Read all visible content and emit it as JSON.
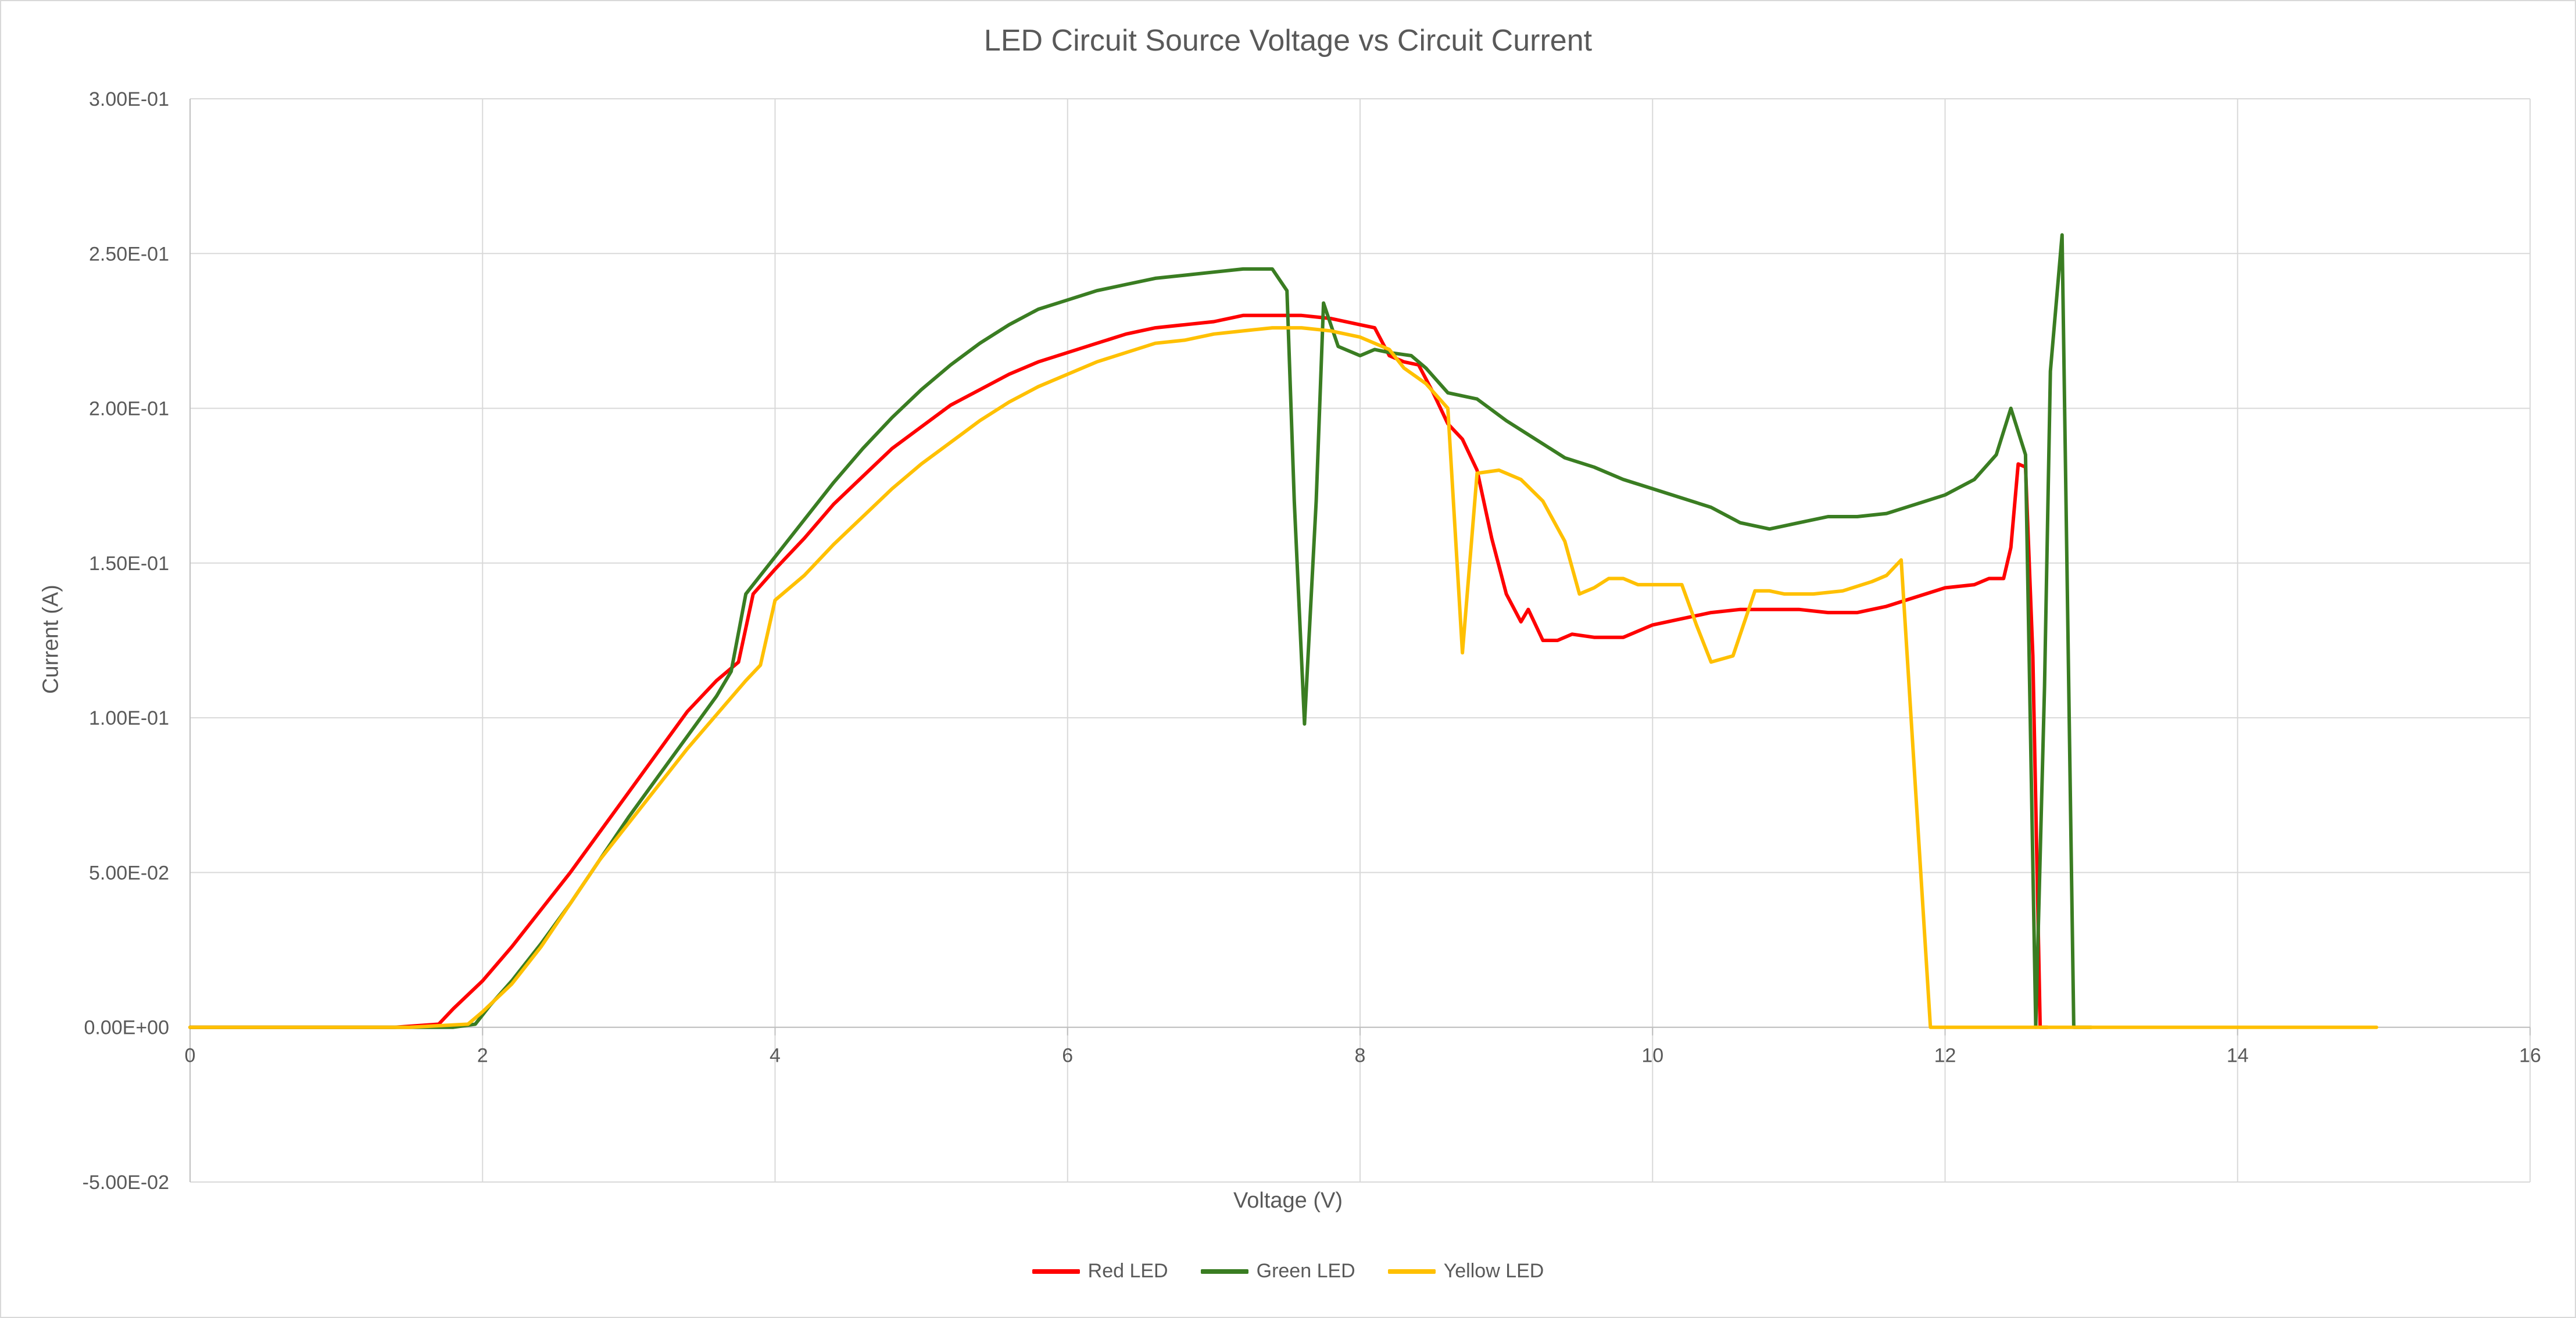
{
  "chart_data": {
    "type": "line",
    "title": "LED Circuit Source Voltage vs Circuit Current",
    "xlabel": "Voltage (V)",
    "ylabel": "Current (A)",
    "xlim": [
      0,
      16
    ],
    "ylim": [
      -0.05,
      0.3
    ],
    "x_ticks": [
      0,
      2,
      4,
      6,
      8,
      10,
      12,
      14,
      16
    ],
    "x_tick_labels": [
      "0",
      "2",
      "4",
      "6",
      "8",
      "10",
      "12",
      "14",
      "16"
    ],
    "y_ticks": [
      -0.05,
      0,
      0.05,
      0.1,
      0.15,
      0.2,
      0.25,
      0.3
    ],
    "y_tick_labels": [
      "-5.00E-02",
      "0.00E+00",
      "5.00E-02",
      "1.00E-01",
      "1.50E-01",
      "2.00E-01",
      "2.50E-01",
      "3.00E-01"
    ],
    "grid": true,
    "legend_position": "bottom",
    "series": [
      {
        "name": "Red LED",
        "color": "#ff0000",
        "points": [
          [
            0,
            0
          ],
          [
            1.4,
            0
          ],
          [
            1.7,
            0.001
          ],
          [
            1.8,
            0.006
          ],
          [
            2.0,
            0.015
          ],
          [
            2.2,
            0.026
          ],
          [
            2.4,
            0.038
          ],
          [
            2.6,
            0.05
          ],
          [
            2.8,
            0.063
          ],
          [
            3.0,
            0.076
          ],
          [
            3.2,
            0.089
          ],
          [
            3.4,
            0.102
          ],
          [
            3.6,
            0.112
          ],
          [
            3.75,
            0.118
          ],
          [
            3.85,
            0.14
          ],
          [
            4.0,
            0.148
          ],
          [
            4.2,
            0.158
          ],
          [
            4.4,
            0.169
          ],
          [
            4.6,
            0.178
          ],
          [
            4.8,
            0.187
          ],
          [
            5.0,
            0.194
          ],
          [
            5.2,
            0.201
          ],
          [
            5.4,
            0.206
          ],
          [
            5.6,
            0.211
          ],
          [
            5.8,
            0.215
          ],
          [
            6.0,
            0.218
          ],
          [
            6.2,
            0.221
          ],
          [
            6.4,
            0.224
          ],
          [
            6.6,
            0.226
          ],
          [
            6.8,
            0.227
          ],
          [
            7.0,
            0.228
          ],
          [
            7.2,
            0.23
          ],
          [
            7.4,
            0.23
          ],
          [
            7.6,
            0.23
          ],
          [
            7.8,
            0.229
          ],
          [
            8.0,
            0.227
          ],
          [
            8.1,
            0.226
          ],
          [
            8.2,
            0.217
          ],
          [
            8.3,
            0.215
          ],
          [
            8.4,
            0.214
          ],
          [
            8.5,
            0.205
          ],
          [
            8.6,
            0.195
          ],
          [
            8.7,
            0.19
          ],
          [
            8.8,
            0.18
          ],
          [
            8.9,
            0.158
          ],
          [
            9.0,
            0.14
          ],
          [
            9.1,
            0.131
          ],
          [
            9.15,
            0.135
          ],
          [
            9.25,
            0.125
          ],
          [
            9.35,
            0.125
          ],
          [
            9.45,
            0.127
          ],
          [
            9.6,
            0.126
          ],
          [
            9.8,
            0.126
          ],
          [
            10.0,
            0.13
          ],
          [
            10.2,
            0.132
          ],
          [
            10.4,
            0.134
          ],
          [
            10.6,
            0.135
          ],
          [
            10.8,
            0.135
          ],
          [
            11.0,
            0.135
          ],
          [
            11.2,
            0.134
          ],
          [
            11.4,
            0.134
          ],
          [
            11.6,
            0.136
          ],
          [
            11.8,
            0.139
          ],
          [
            12.0,
            0.142
          ],
          [
            12.2,
            0.143
          ],
          [
            12.3,
            0.145
          ],
          [
            12.4,
            0.145
          ],
          [
            12.45,
            0.155
          ],
          [
            12.5,
            0.182
          ],
          [
            12.55,
            0.181
          ],
          [
            12.6,
            0.12
          ],
          [
            12.65,
            0
          ],
          [
            12.7,
            0
          ]
        ]
      },
      {
        "name": "Green LED",
        "color": "#3a7d22",
        "points": [
          [
            0,
            0
          ],
          [
            1.4,
            0
          ],
          [
            1.8,
            0
          ],
          [
            1.95,
            0.001
          ],
          [
            2.05,
            0.007
          ],
          [
            2.2,
            0.015
          ],
          [
            2.4,
            0.027
          ],
          [
            2.6,
            0.04
          ],
          [
            2.8,
            0.054
          ],
          [
            3.0,
            0.068
          ],
          [
            3.2,
            0.081
          ],
          [
            3.4,
            0.094
          ],
          [
            3.6,
            0.107
          ],
          [
            3.7,
            0.115
          ],
          [
            3.8,
            0.14
          ],
          [
            4.0,
            0.152
          ],
          [
            4.2,
            0.164
          ],
          [
            4.4,
            0.176
          ],
          [
            4.6,
            0.187
          ],
          [
            4.8,
            0.197
          ],
          [
            5.0,
            0.206
          ],
          [
            5.2,
            0.214
          ],
          [
            5.4,
            0.221
          ],
          [
            5.6,
            0.227
          ],
          [
            5.8,
            0.232
          ],
          [
            6.0,
            0.235
          ],
          [
            6.2,
            0.238
          ],
          [
            6.4,
            0.24
          ],
          [
            6.6,
            0.242
          ],
          [
            6.8,
            0.243
          ],
          [
            7.0,
            0.244
          ],
          [
            7.2,
            0.245
          ],
          [
            7.4,
            0.245
          ],
          [
            7.5,
            0.238
          ],
          [
            7.55,
            0.17
          ],
          [
            7.62,
            0.098
          ],
          [
            7.7,
            0.17
          ],
          [
            7.75,
            0.234
          ],
          [
            7.85,
            0.22
          ],
          [
            8.0,
            0.217
          ],
          [
            8.1,
            0.219
          ],
          [
            8.2,
            0.218
          ],
          [
            8.35,
            0.217
          ],
          [
            8.45,
            0.213
          ],
          [
            8.6,
            0.205
          ],
          [
            8.8,
            0.203
          ],
          [
            9.0,
            0.196
          ],
          [
            9.2,
            0.19
          ],
          [
            9.4,
            0.184
          ],
          [
            9.6,
            0.181
          ],
          [
            9.8,
            0.177
          ],
          [
            10.0,
            0.174
          ],
          [
            10.2,
            0.171
          ],
          [
            10.4,
            0.168
          ],
          [
            10.6,
            0.163
          ],
          [
            10.8,
            0.161
          ],
          [
            11.0,
            0.163
          ],
          [
            11.2,
            0.165
          ],
          [
            11.4,
            0.165
          ],
          [
            11.6,
            0.166
          ],
          [
            11.8,
            0.169
          ],
          [
            12.0,
            0.172
          ],
          [
            12.2,
            0.177
          ],
          [
            12.35,
            0.185
          ],
          [
            12.45,
            0.2
          ],
          [
            12.55,
            0.185
          ],
          [
            12.62,
            0
          ],
          [
            12.68,
            0.11
          ],
          [
            12.72,
            0.212
          ],
          [
            12.8,
            0.256
          ],
          [
            12.88,
            0
          ],
          [
            13,
            0
          ]
        ]
      },
      {
        "name": "Yellow LED",
        "color": "#ffc000",
        "points": [
          [
            0,
            0
          ],
          [
            1.5,
            0
          ],
          [
            1.9,
            0.001
          ],
          [
            2.0,
            0.005
          ],
          [
            2.2,
            0.014
          ],
          [
            2.4,
            0.026
          ],
          [
            2.6,
            0.04
          ],
          [
            2.8,
            0.054
          ],
          [
            3.0,
            0.066
          ],
          [
            3.2,
            0.078
          ],
          [
            3.4,
            0.09
          ],
          [
            3.6,
            0.101
          ],
          [
            3.8,
            0.112
          ],
          [
            3.9,
            0.117
          ],
          [
            4.0,
            0.138
          ],
          [
            4.2,
            0.146
          ],
          [
            4.4,
            0.156
          ],
          [
            4.6,
            0.165
          ],
          [
            4.8,
            0.174
          ],
          [
            5.0,
            0.182
          ],
          [
            5.2,
            0.189
          ],
          [
            5.4,
            0.196
          ],
          [
            5.6,
            0.202
          ],
          [
            5.8,
            0.207
          ],
          [
            6.0,
            0.211
          ],
          [
            6.2,
            0.215
          ],
          [
            6.4,
            0.218
          ],
          [
            6.6,
            0.221
          ],
          [
            6.8,
            0.222
          ],
          [
            7.0,
            0.224
          ],
          [
            7.2,
            0.225
          ],
          [
            7.4,
            0.226
          ],
          [
            7.6,
            0.226
          ],
          [
            7.8,
            0.225
          ],
          [
            8.0,
            0.223
          ],
          [
            8.2,
            0.219
          ],
          [
            8.3,
            0.213
          ],
          [
            8.45,
            0.208
          ],
          [
            8.6,
            0.2
          ],
          [
            8.7,
            0.121
          ],
          [
            8.8,
            0.179
          ],
          [
            8.95,
            0.18
          ],
          [
            9.1,
            0.177
          ],
          [
            9.25,
            0.17
          ],
          [
            9.4,
            0.157
          ],
          [
            9.5,
            0.14
          ],
          [
            9.6,
            0.142
          ],
          [
            9.7,
            0.145
          ],
          [
            9.8,
            0.145
          ],
          [
            9.9,
            0.143
          ],
          [
            10.2,
            0.143
          ],
          [
            10.3,
            0.13
          ],
          [
            10.4,
            0.118
          ],
          [
            10.55,
            0.12
          ],
          [
            10.7,
            0.141
          ],
          [
            10.8,
            0.141
          ],
          [
            10.9,
            0.14
          ],
          [
            11.1,
            0.14
          ],
          [
            11.3,
            0.141
          ],
          [
            11.5,
            0.144
          ],
          [
            11.6,
            0.146
          ],
          [
            11.7,
            0.151
          ],
          [
            11.9,
            0
          ],
          [
            12.5,
            0
          ],
          [
            14,
            0
          ],
          [
            14.95,
            0
          ]
        ]
      }
    ]
  }
}
